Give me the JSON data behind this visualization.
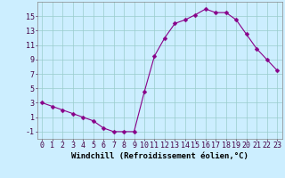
{
  "x": [
    0,
    1,
    2,
    3,
    4,
    5,
    6,
    7,
    8,
    9,
    10,
    11,
    12,
    13,
    14,
    15,
    16,
    17,
    18,
    19,
    20,
    21,
    22,
    23
  ],
  "y": [
    3,
    2.5,
    2,
    1.5,
    1,
    0.5,
    -0.5,
    -1,
    -1,
    -1,
    4.5,
    9.5,
    12,
    14,
    14.5,
    15.2,
    16,
    15.5,
    15.5,
    14.5,
    12.5,
    10.5,
    9,
    7.5
  ],
  "line_color": "#880088",
  "marker": "D",
  "marker_size": 2.5,
  "bg_color": "#cceeff",
  "grid_color": "#99cccc",
  "xlabel": "Windchill (Refroidissement éolien,°C)",
  "xlabel_fontsize": 6.5,
  "tick_fontsize": 6,
  "ylim": [
    -2,
    17
  ],
  "xlim": [
    -0.5,
    23.5
  ],
  "yticks": [
    -1,
    1,
    3,
    5,
    7,
    9,
    11,
    13,
    15
  ],
  "xticks": [
    0,
    1,
    2,
    3,
    4,
    5,
    6,
    7,
    8,
    9,
    10,
    11,
    12,
    13,
    14,
    15,
    16,
    17,
    18,
    19,
    20,
    21,
    22,
    23
  ]
}
